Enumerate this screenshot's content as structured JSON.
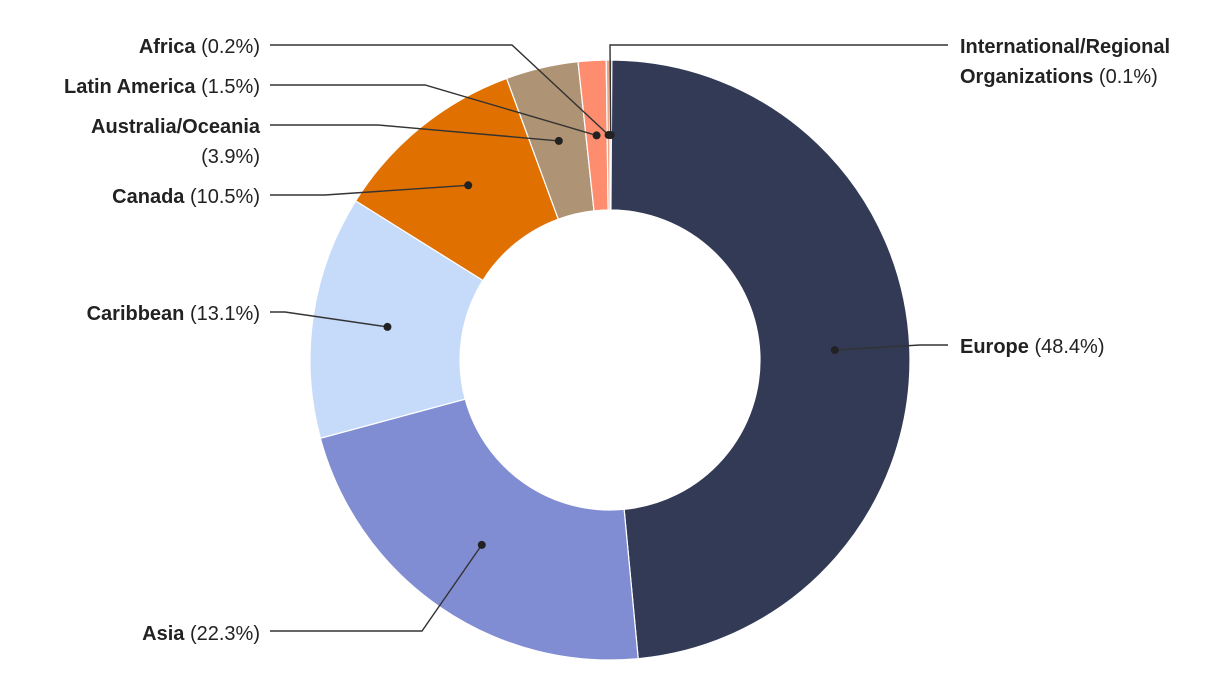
{
  "chart_data": {
    "type": "pie",
    "donut": true,
    "slices": [
      {
        "name": "International/Regional Organizations",
        "value": 0.1,
        "display": "(0.1%)",
        "color": "#2b2f3f"
      },
      {
        "name": "Europe",
        "value": 48.4,
        "display": "(48.4%)",
        "color": "#333a56"
      },
      {
        "name": "Asia",
        "value": 22.3,
        "display": "(22.3%)",
        "color": "#808dd3"
      },
      {
        "name": "Caribbean",
        "value": 13.1,
        "display": "(13.1%)",
        "color": "#c6dafa"
      },
      {
        "name": "Canada",
        "value": 10.5,
        "display": "(10.5%)",
        "color": "#e07000"
      },
      {
        "name": "Australia/Oceania",
        "value": 3.9,
        "display": "(3.9%)",
        "color": "#ae9474"
      },
      {
        "name": "Latin America",
        "value": 1.5,
        "display": "(1.5%)",
        "color": "#fe8d6f"
      },
      {
        "name": "Africa",
        "value": 0.2,
        "display": "(0.2%)",
        "color": "#e8a88c"
      }
    ]
  }
}
